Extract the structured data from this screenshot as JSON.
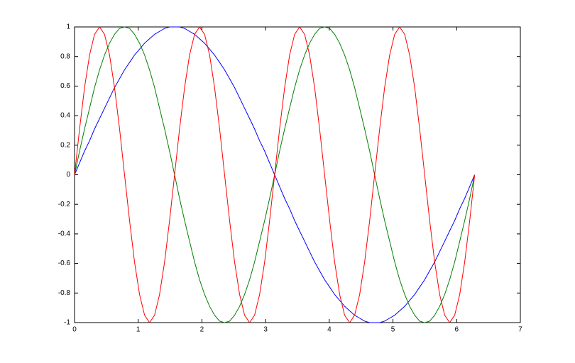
{
  "chart_data": {
    "type": "line",
    "x": [
      0,
      0.079,
      0.157,
      0.236,
      0.314,
      0.393,
      0.471,
      0.55,
      0.628,
      0.707,
      0.785,
      0.864,
      0.942,
      1.021,
      1.1,
      1.178,
      1.257,
      1.335,
      1.414,
      1.492,
      1.571,
      1.649,
      1.728,
      1.806,
      1.885,
      1.963,
      2.042,
      2.121,
      2.199,
      2.278,
      2.356,
      2.435,
      2.513,
      2.592,
      2.67,
      2.749,
      2.827,
      2.906,
      2.985,
      3.063,
      3.142,
      3.22,
      3.299,
      3.377,
      3.456,
      3.534,
      3.613,
      3.691,
      3.77,
      3.848,
      3.927,
      4.006,
      4.084,
      4.163,
      4.241,
      4.32,
      4.398,
      4.477,
      4.555,
      4.634,
      4.712,
      4.791,
      4.869,
      4.948,
      5.027,
      5.105,
      5.184,
      5.262,
      5.341,
      5.419,
      5.498,
      5.576,
      5.655,
      5.733,
      5.812,
      5.89,
      5.969,
      6.048,
      6.126,
      6.205,
      6.283
    ],
    "series": [
      {
        "color": "#0000ff",
        "values": [
          0,
          0.08,
          0.16,
          0.23,
          0.31,
          0.38,
          0.45,
          0.52,
          0.59,
          0.65,
          0.71,
          0.76,
          0.81,
          0.85,
          0.89,
          0.92,
          0.95,
          0.97,
          0.99,
          1,
          1,
          1,
          0.99,
          0.97,
          0.95,
          0.92,
          0.89,
          0.85,
          0.81,
          0.76,
          0.71,
          0.65,
          0.59,
          0.52,
          0.45,
          0.38,
          0.31,
          0.23,
          0.16,
          0.08,
          0,
          -0.08,
          -0.16,
          -0.23,
          -0.31,
          -0.38,
          -0.45,
          -0.52,
          -0.59,
          -0.65,
          -0.71,
          -0.76,
          -0.81,
          -0.85,
          -0.89,
          -0.92,
          -0.95,
          -0.97,
          -0.99,
          -1,
          -1,
          -1,
          -0.99,
          -0.97,
          -0.95,
          -0.92,
          -0.89,
          -0.85,
          -0.81,
          -0.76,
          -0.71,
          -0.65,
          -0.59,
          -0.52,
          -0.45,
          -0.38,
          -0.31,
          -0.23,
          -0.16,
          -0.08,
          0
        ]
      },
      {
        "color": "#008000",
        "values": [
          0,
          0.16,
          0.31,
          0.45,
          0.59,
          0.71,
          0.81,
          0.89,
          0.95,
          0.99,
          1,
          0.99,
          0.95,
          0.89,
          0.81,
          0.71,
          0.59,
          0.45,
          0.31,
          0.16,
          0,
          -0.16,
          -0.31,
          -0.45,
          -0.59,
          -0.71,
          -0.81,
          -0.89,
          -0.95,
          -0.99,
          -1,
          -0.99,
          -0.95,
          -0.89,
          -0.81,
          -0.71,
          -0.59,
          -0.45,
          -0.31,
          -0.16,
          0,
          0.16,
          0.31,
          0.45,
          0.59,
          0.71,
          0.81,
          0.89,
          0.95,
          0.99,
          1,
          0.99,
          0.95,
          0.89,
          0.81,
          0.71,
          0.59,
          0.45,
          0.31,
          0.16,
          0,
          -0.16,
          -0.31,
          -0.45,
          -0.59,
          -0.71,
          -0.81,
          -0.89,
          -0.95,
          -0.99,
          -1,
          -0.99,
          -0.95,
          -0.89,
          -0.81,
          -0.71,
          -0.59,
          -0.45,
          -0.31,
          -0.16,
          0
        ]
      },
      {
        "color": "#ff0000",
        "values": [
          0,
          0.31,
          0.59,
          0.81,
          0.95,
          1,
          0.95,
          0.81,
          0.59,
          0.31,
          0,
          -0.31,
          -0.59,
          -0.81,
          -0.95,
          -1,
          -0.95,
          -0.81,
          -0.59,
          -0.31,
          0,
          0.31,
          0.59,
          0.81,
          0.95,
          1,
          0.95,
          0.81,
          0.59,
          0.31,
          0,
          -0.31,
          -0.59,
          -0.81,
          -0.95,
          -1,
          -0.95,
          -0.81,
          -0.59,
          -0.31,
          0,
          0.31,
          0.59,
          0.81,
          0.95,
          1,
          0.95,
          0.81,
          0.59,
          0.31,
          0,
          -0.31,
          -0.59,
          -0.81,
          -0.95,
          -1,
          -0.95,
          -0.81,
          -0.59,
          -0.31,
          0,
          0.31,
          0.59,
          0.81,
          0.95,
          1,
          0.95,
          0.81,
          0.59,
          0.31,
          0,
          -0.31,
          -0.59,
          -0.81,
          -0.95,
          -1,
          -0.95,
          -0.81,
          -0.59,
          -0.31,
          0
        ]
      }
    ],
    "xlim": [
      0,
      7
    ],
    "xticks": [
      0,
      1,
      2,
      3,
      4,
      5,
      6,
      7
    ],
    "ylim": [
      -1,
      1
    ],
    "yticks": [
      -1,
      -0.8,
      -0.6,
      -0.4,
      -0.2,
      0,
      0.2,
      0.4,
      0.6,
      0.8,
      1
    ],
    "grid": false
  }
}
